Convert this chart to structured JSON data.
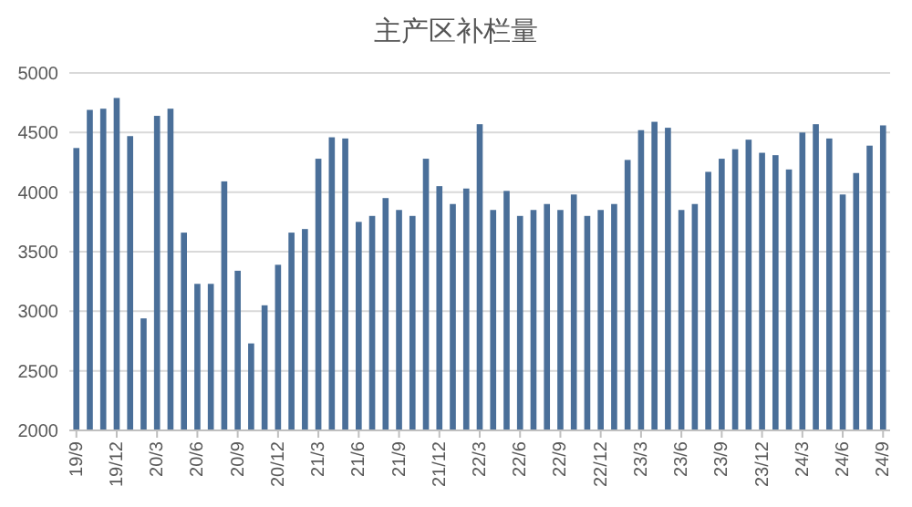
{
  "chart_data": {
    "type": "bar",
    "title": "主产区补栏量",
    "categories": [
      "19/9",
      null,
      null,
      "19/12",
      null,
      null,
      "20/3",
      null,
      null,
      "20/6",
      null,
      null,
      "20/9",
      null,
      null,
      "20/12",
      null,
      null,
      "21/3",
      null,
      null,
      "21/6",
      null,
      null,
      "21/9",
      null,
      null,
      "21/12",
      null,
      null,
      "22/3",
      null,
      null,
      "22/6",
      null,
      null,
      "22/9",
      null,
      null,
      "22/12",
      null,
      null,
      "23/3",
      null,
      null,
      "23/6",
      null,
      null,
      "23/9",
      null,
      null,
      "23/12",
      null,
      null,
      "24/3",
      null,
      null,
      "24/6",
      null,
      null,
      "24/9"
    ],
    "values": [
      4370,
      4690,
      4700,
      4790,
      4470,
      2940,
      4640,
      4700,
      3660,
      3230,
      3230,
      4090,
      3340,
      2730,
      3050,
      3390,
      3660,
      3690,
      4280,
      4460,
      4450,
      3750,
      3800,
      3950,
      3850,
      3800,
      4280,
      4050,
      3900,
      4030,
      4570,
      3850,
      4010,
      3800,
      3850,
      3900,
      3850,
      3980,
      3800,
      3850,
      3900,
      4270,
      4520,
      4590,
      4540,
      3850,
      3900,
      4170,
      4280,
      4360,
      4440,
      4330,
      4310,
      4190,
      4500,
      4570,
      4450,
      3980,
      4160,
      4390,
      4560
    ],
    "color": "#4a6f99",
    "ylim": [
      2000,
      5000
    ],
    "yticks": [
      2000,
      2500,
      3000,
      3500,
      4000,
      4500,
      5000
    ],
    "grid": "y"
  }
}
